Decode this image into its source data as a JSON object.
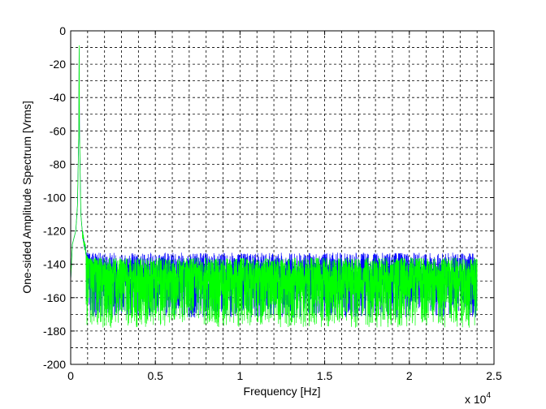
{
  "chart_data": {
    "type": "line",
    "title": "",
    "xlabel": "Frequency [Hz]",
    "ylabel": "One-sided Amplitude Spectrum [Vrms]",
    "x_multiplier_label": "x 10",
    "x_multiplier_exponent": "4",
    "xlim": [
      0,
      25000
    ],
    "ylim": [
      -200,
      0
    ],
    "x_ticks": [
      0,
      5000,
      10000,
      15000,
      20000,
      25000
    ],
    "x_tick_labels": [
      "0",
      "0.5",
      "1",
      "1.5",
      "2",
      "2.5"
    ],
    "y_ticks": [
      0,
      -20,
      -40,
      -60,
      -80,
      -100,
      -120,
      -140,
      -160,
      -180,
      -200
    ],
    "y_tick_labels": [
      "0",
      "-20",
      "-40",
      "-60",
      "-80",
      "-100",
      "-120",
      "-140",
      "-160",
      "-180",
      "-200"
    ],
    "grid": true,
    "series": [
      {
        "color": "#0000ff",
        "x": [
          0,
          100,
          200,
          300,
          400,
          480,
          500,
          520,
          600,
          700,
          800,
          900,
          1000,
          1200,
          1500,
          2000,
          5000,
          10000,
          15000,
          20000,
          24000
        ],
        "y": [
          -150,
          -128,
          -124,
          -120,
          -105,
          -60,
          -5,
          -60,
          -110,
          -122,
          -128,
          -132,
          -136,
          -141,
          -146,
          -148,
          -149,
          -149,
          -149,
          -149,
          -149
        ],
        "noise_top": -133,
        "noise_bottom": -172
      },
      {
        "color": "#00ff00",
        "x": [
          0,
          100,
          200,
          300,
          400,
          480,
          500,
          520,
          600,
          700,
          800,
          900,
          1000,
          1200,
          1500,
          2000,
          5000,
          10000,
          15000,
          20000,
          24000
        ],
        "y": [
          -150,
          -128,
          -124,
          -120,
          -105,
          -60,
          -3,
          -60,
          -110,
          -122,
          -128,
          -132,
          -136,
          -141,
          -146,
          -149,
          -150,
          -150,
          -150,
          -150,
          -150
        ],
        "noise_top": -136,
        "noise_bottom": -178
      }
    ]
  }
}
